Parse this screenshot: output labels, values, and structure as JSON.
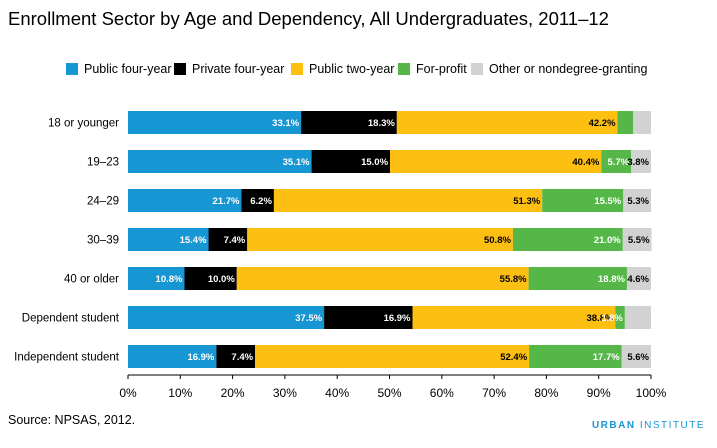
{
  "chart_data": {
    "type": "bar",
    "orientation": "horizontal",
    "stacked": true,
    "title": "Enrollment Sector by Age and Dependency, All Undergraduates, 2011–12",
    "categories": [
      "18 or younger",
      "19–23",
      "24–29",
      "30–39",
      "40 or older",
      "Dependent student",
      "Independent student"
    ],
    "series": [
      {
        "name": "Public four-year",
        "color": "#1696d2",
        "label_color": "#ffffff",
        "values": [
          33.1,
          35.1,
          21.7,
          15.4,
          10.8,
          37.5,
          16.9
        ],
        "labels": [
          "33.1%",
          "35.1%",
          "21.7%",
          "15.4%",
          "10.8%",
          "37.5%",
          "16.9%"
        ]
      },
      {
        "name": "Private four-year",
        "color": "#000000",
        "label_color": "#ffffff",
        "values": [
          18.3,
          15.0,
          6.2,
          7.4,
          10.0,
          16.9,
          7.4
        ],
        "labels": [
          "18.3%",
          "15.0%",
          "6.2%",
          "7.4%",
          "10.0%",
          "16.9%",
          "7.4%"
        ]
      },
      {
        "name": "Public two-year",
        "color": "#fdbf11",
        "label_color": "#000000",
        "values": [
          42.2,
          40.4,
          51.3,
          50.8,
          55.8,
          38.8,
          52.4
        ],
        "labels": [
          "42.2%",
          "40.4%",
          "51.3%",
          "50.8%",
          "55.8%",
          "38.8%",
          "52.4%"
        ]
      },
      {
        "name": "For-profit",
        "color": "#55b748",
        "label_color": "#ffffff",
        "values": [
          3.0,
          5.7,
          15.5,
          21.0,
          18.8,
          1.8,
          17.7
        ],
        "labels": [
          "",
          "5.7%",
          "15.5%",
          "21.0%",
          "18.8%",
          "1.8%",
          "17.7%"
        ]
      },
      {
        "name": "Other or nondegree-granting",
        "color": "#d2d2d2",
        "label_color": "#000000",
        "values": [
          3.4,
          3.8,
          5.3,
          5.5,
          4.6,
          5.0,
          5.6
        ],
        "labels": [
          "",
          "3.8%",
          "5.3%",
          "5.5%",
          "4.6%",
          "",
          "5.6%"
        ]
      }
    ],
    "xlim": [
      0,
      100
    ],
    "ticks": [
      "0%",
      "10%",
      "20%",
      "30%",
      "40%",
      "50%",
      "60%",
      "70%",
      "80%",
      "90%",
      "100%"
    ],
    "legend_position": "top",
    "grid": false
  },
  "footer": {
    "source": "Source: NPSAS, 2012.",
    "brand_first": "URBAN",
    "brand_second": "INSTITUTE"
  }
}
